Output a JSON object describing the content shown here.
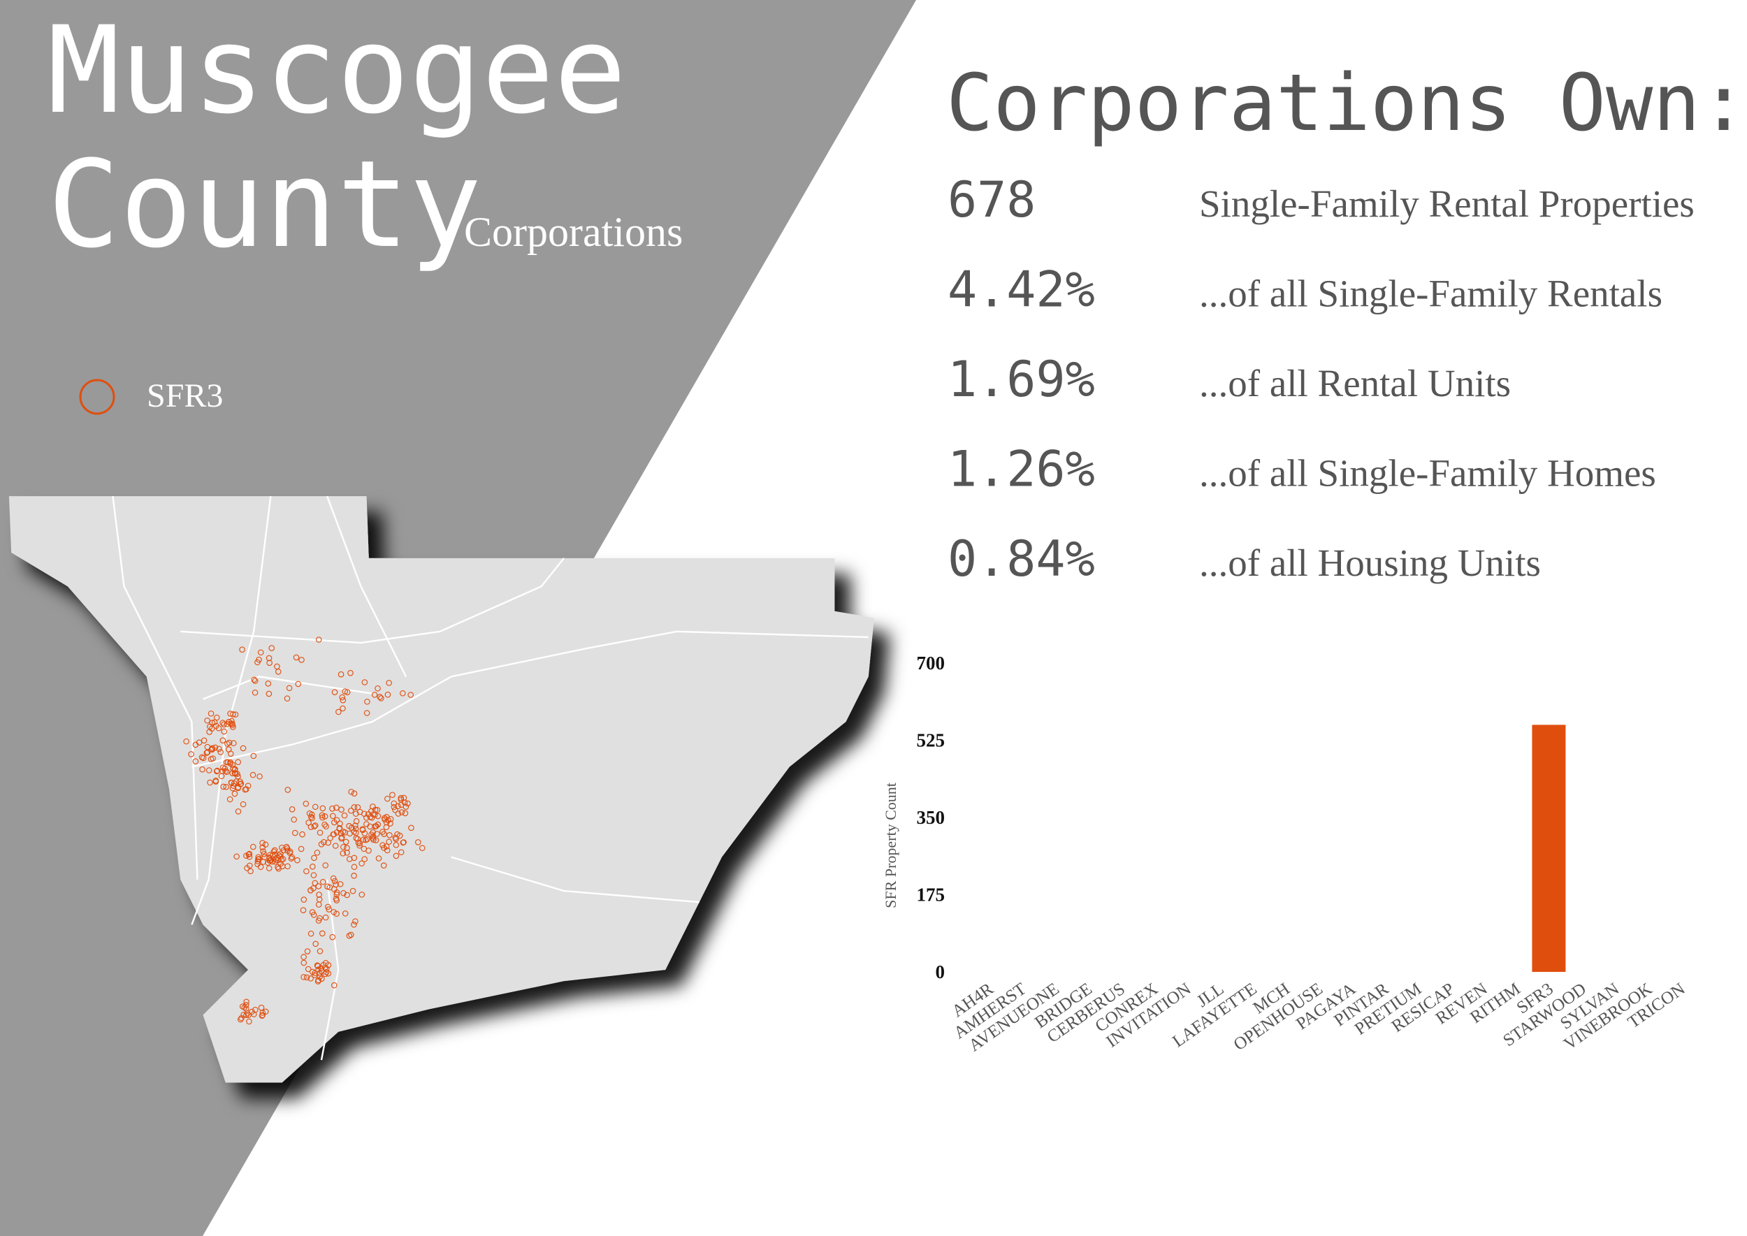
{
  "header": {
    "title": [
      "Muscogee",
      "County"
    ],
    "subtitle": "Corporations"
  },
  "map_legend": "SFR3",
  "stats": {
    "title": "Corporations Own:",
    "rows": [
      {
        "value": "678",
        "label": "Single-Family Rental Properties"
      },
      {
        "value": "4.42%",
        "label": "...of all Single-Family Rentals"
      },
      {
        "value": "1.69%",
        "label": "...of all Rental Units"
      },
      {
        "value": "1.26%",
        "label": "...of all Single-Family Homes"
      },
      {
        "value": "0.84%",
        "label": "...of all Housing Units"
      }
    ]
  },
  "chart_data": {
    "type": "bar",
    "y_label": "SFR Property Count",
    "categories": [
      "AH4R",
      "AMHERST",
      "AVENUEONE",
      "BRIDGE",
      "CERBERUS",
      "CONREX",
      "INVITATION",
      "JLL",
      "LAFAYETTE",
      "MCH",
      "OPENHOUSE",
      "PAGAYA",
      "PINTAR",
      "PRETIUM",
      "RESICAP",
      "REVEN",
      "RITHM",
      "SFR3",
      "STARWOOD",
      "SYLVAN",
      "VINEBROOK",
      "TRICON"
    ],
    "values": [
      0,
      0,
      0,
      0,
      0,
      0,
      0,
      0,
      0,
      0,
      0,
      0,
      0,
      0,
      0,
      0,
      0,
      560,
      0,
      0,
      0,
      0
    ],
    "color": "#e04e0e",
    "ylim": [
      0,
      700
    ],
    "yticks": [
      0,
      175,
      350,
      525,
      700
    ]
  }
}
